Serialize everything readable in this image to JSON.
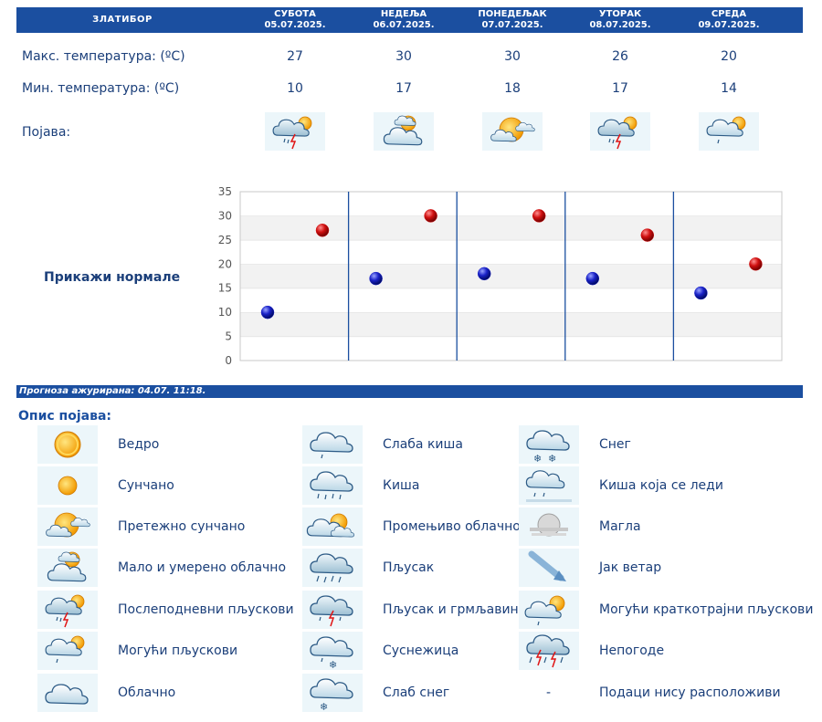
{
  "header": {
    "location": "ЗЛАТИБОР",
    "days": [
      {
        "name": "СУБОТА",
        "date": "05.07.2025."
      },
      {
        "name": "НЕДЕЉА",
        "date": "06.07.2025."
      },
      {
        "name": "ПОНЕДЕЉАК",
        "date": "07.07.2025."
      },
      {
        "name": "УТОРАК",
        "date": "08.07.2025."
      },
      {
        "name": "СРЕДА",
        "date": "09.07.2025."
      }
    ]
  },
  "rows": {
    "max_label": "Макс. температура: (ºC)",
    "min_label": "Мин. температура: (ºC)",
    "phenomenon_label": "Појава:",
    "max_values": [
      "27",
      "30",
      "30",
      "26",
      "20"
    ],
    "min_values": [
      "10",
      "17",
      "18",
      "17",
      "14"
    ],
    "icons": [
      "afternoon-showers-icon",
      "partly-cloudy-icon",
      "mostly-sunny-icon",
      "afternoon-showers-icon",
      "possible-showers-icon"
    ]
  },
  "normals_link": "Прикажи нормале",
  "chart_data": {
    "type": "scatter",
    "x": [
      "СУБОТА",
      "НЕДЕЉА",
      "ПОНЕДЕЉАК",
      "УТОРАК",
      "СРЕДА"
    ],
    "series": [
      {
        "values": [
          10,
          17,
          18,
          17,
          14
        ],
        "color": "#1a22c8"
      },
      {
        "values": [
          27,
          30,
          30,
          26,
          20
        ],
        "color": "#d01010"
      }
    ],
    "yticks": [
      "0",
      "5",
      "10",
      "15",
      "20",
      "25",
      "30",
      "35"
    ],
    "ylim": [
      0,
      35
    ],
    "grid": true
  },
  "updated": "Прогноза ажурирана:  04.07.  11:18.",
  "legend": {
    "title": "Опис појава:",
    "items": [
      {
        "icon": "clear-sun-icon",
        "label": "Ведро"
      },
      {
        "icon": "sunny-icon",
        "label": "Сунчано"
      },
      {
        "icon": "mostly-sunny-icon",
        "label": "Претежно сунчано"
      },
      {
        "icon": "partly-cloudy-icon",
        "label": "Мало и умерено облачно"
      },
      {
        "icon": "afternoon-showers-icon",
        "label": "Послеподневни пљускови"
      },
      {
        "icon": "possible-showers-icon",
        "label": "Могући пљускови"
      },
      {
        "icon": "cloudy-icon",
        "label": "Облачно"
      },
      {
        "icon": "light-rain-icon",
        "label": "Слаба киша"
      },
      {
        "icon": "rain-icon",
        "label": "Киша"
      },
      {
        "icon": "variable-cloudy-icon",
        "label": "Промењиво облачно"
      },
      {
        "icon": "shower-icon",
        "label": "Пљусак"
      },
      {
        "icon": "thunder-shower-icon",
        "label": "Пљусак и грмљавина"
      },
      {
        "icon": "sleet-icon",
        "label": "Суснежица"
      },
      {
        "icon": "light-snow-icon",
        "label": "Слаб снег"
      },
      {
        "icon": "snow-icon",
        "label": "Снег"
      },
      {
        "icon": "freezing-rain-icon",
        "label": "Киша која се леди"
      },
      {
        "icon": "fog-icon",
        "label": "Магла"
      },
      {
        "icon": "strong-wind-icon",
        "label": "Јак ветар"
      },
      {
        "icon": "brief-showers-icon",
        "label": "Могући краткотрајни пљускови"
      },
      {
        "icon": "storm-icon",
        "label": "Непогоде"
      },
      {
        "icon": "no-data-dash",
        "label": "Подаци нису расположиви",
        "dash": "-"
      }
    ]
  }
}
